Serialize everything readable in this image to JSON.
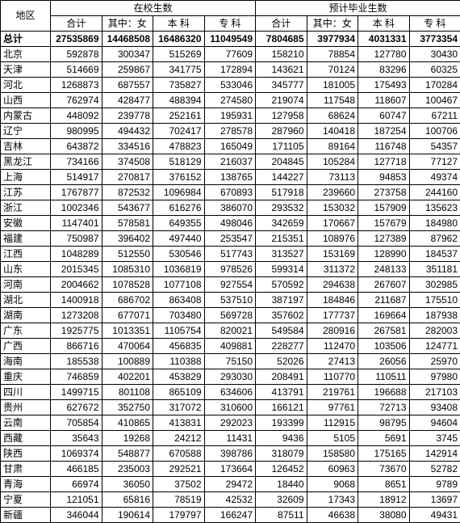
{
  "headers": {
    "region": "地区",
    "group1": "在校生数",
    "group2": "预计毕业生数",
    "sub": [
      "合计",
      "其中：女",
      "本 科",
      "专 科",
      "合计",
      "其中：女",
      "本 科",
      "专 科"
    ]
  },
  "total_label": "总计",
  "total_values": [
    "27535869",
    "14468508",
    "16486320",
    "11049549",
    "7804685",
    "3977934",
    "4031331",
    "3773354"
  ],
  "rows": [
    {
      "region": "北京",
      "v": [
        "592878",
        "300347",
        "515269",
        "77609",
        "158210",
        "78854",
        "127780",
        "30430"
      ]
    },
    {
      "region": "天津",
      "v": [
        "514669",
        "259867",
        "341775",
        "172894",
        "143621",
        "70124",
        "83296",
        "60325"
      ]
    },
    {
      "region": "河北",
      "v": [
        "1268873",
        "687557",
        "735827",
        "533046",
        "345777",
        "181005",
        "175493",
        "170284"
      ]
    },
    {
      "region": "山西",
      "v": [
        "762974",
        "428477",
        "488394",
        "274580",
        "219074",
        "117548",
        "118607",
        "100467"
      ]
    },
    {
      "region": "内蒙古",
      "v": [
        "448092",
        "239778",
        "252161",
        "195931",
        "127958",
        "68624",
        "60747",
        "67211"
      ]
    },
    {
      "region": "辽宁",
      "v": [
        "980995",
        "494432",
        "702417",
        "278578",
        "287960",
        "140418",
        "187254",
        "100706"
      ]
    },
    {
      "region": "吉林",
      "v": [
        "643872",
        "334516",
        "478823",
        "165049",
        "171105",
        "89164",
        "116748",
        "54357"
      ]
    },
    {
      "region": "黑龙江",
      "v": [
        "734166",
        "374508",
        "518129",
        "216037",
        "204845",
        "105284",
        "127718",
        "77127"
      ]
    },
    {
      "region": "上海",
      "v": [
        "514917",
        "270817",
        "376152",
        "138765",
        "144227",
        "73113",
        "94853",
        "49374"
      ]
    },
    {
      "region": "江苏",
      "v": [
        "1767877",
        "872532",
        "1096984",
        "670893",
        "517918",
        "239660",
        "273758",
        "244160"
      ]
    },
    {
      "region": "浙江",
      "v": [
        "1002346",
        "543677",
        "616276",
        "386070",
        "293532",
        "153032",
        "157909",
        "135623"
      ]
    },
    {
      "region": "安徽",
      "v": [
        "1147401",
        "578581",
        "649355",
        "498046",
        "342659",
        "170667",
        "157679",
        "184980"
      ]
    },
    {
      "region": "福建",
      "v": [
        "750987",
        "396402",
        "497440",
        "253547",
        "215351",
        "108976",
        "127389",
        "87962"
      ]
    },
    {
      "region": "江西",
      "v": [
        "1048289",
        "512550",
        "530546",
        "517743",
        "313527",
        "153169",
        "128990",
        "184537"
      ]
    },
    {
      "region": "山东",
      "v": [
        "2015345",
        "1085310",
        "1036819",
        "978526",
        "599314",
        "311372",
        "248133",
        "351181"
      ]
    },
    {
      "region": "河南",
      "v": [
        "2004662",
        "1078528",
        "1077108",
        "927554",
        "570592",
        "294638",
        "267607",
        "302985"
      ]
    },
    {
      "region": "湖北",
      "v": [
        "1400918",
        "686702",
        "863408",
        "537510",
        "387197",
        "184846",
        "211687",
        "175510"
      ]
    },
    {
      "region": "湖南",
      "v": [
        "1273208",
        "677071",
        "703480",
        "569728",
        "357602",
        "177737",
        "169664",
        "187938"
      ]
    },
    {
      "region": "广东",
      "v": [
        "1925775",
        "1013351",
        "1105754",
        "820021",
        "549584",
        "280916",
        "267581",
        "282003"
      ]
    },
    {
      "region": "广西",
      "v": [
        "866716",
        "470064",
        "456835",
        "409881",
        "228277",
        "112470",
        "103506",
        "124771"
      ]
    },
    {
      "region": "海南",
      "v": [
        "185538",
        "100889",
        "110388",
        "75150",
        "52026",
        "27413",
        "26056",
        "25970"
      ]
    },
    {
      "region": "重庆",
      "v": [
        "746859",
        "402201",
        "453829",
        "293030",
        "208491",
        "110770",
        "110511",
        "97980"
      ]
    },
    {
      "region": "四川",
      "v": [
        "1499715",
        "801108",
        "865109",
        "634606",
        "413791",
        "219761",
        "196688",
        "217103"
      ]
    },
    {
      "region": "贵州",
      "v": [
        "627672",
        "352750",
        "317072",
        "310600",
        "166121",
        "97761",
        "72713",
        "93408"
      ]
    },
    {
      "region": "云南",
      "v": [
        "705854",
        "410865",
        "413831",
        "292023",
        "193399",
        "112915",
        "98795",
        "94604"
      ]
    },
    {
      "region": "西藏",
      "v": [
        "35643",
        "19268",
        "24212",
        "11431",
        "9436",
        "5105",
        "5691",
        "3745"
      ]
    },
    {
      "region": "陕西",
      "v": [
        "1069374",
        "548877",
        "670588",
        "398786",
        "318079",
        "158580",
        "175165",
        "142914"
      ]
    },
    {
      "region": "甘肃",
      "v": [
        "466185",
        "235003",
        "292521",
        "173664",
        "126452",
        "60963",
        "73670",
        "52782"
      ]
    },
    {
      "region": "青海",
      "v": [
        "66974",
        "36050",
        "37502",
        "29472",
        "18440",
        "9068",
        "8651",
        "9789"
      ]
    },
    {
      "region": "宁夏",
      "v": [
        "121051",
        "65816",
        "78519",
        "42532",
        "32609",
        "17343",
        "18912",
        "13697"
      ]
    },
    {
      "region": "新疆",
      "v": [
        "346044",
        "190614",
        "179797",
        "166247",
        "87511",
        "46638",
        "38080",
        "49431"
      ]
    }
  ]
}
